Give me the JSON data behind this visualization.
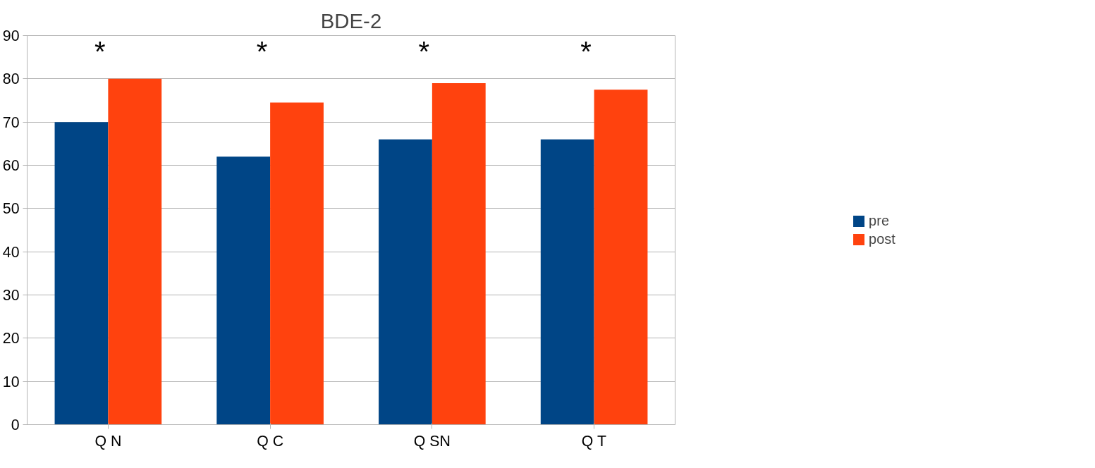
{
  "chart_data": {
    "type": "bar",
    "title": "BDE-2",
    "categories": [
      "Q N",
      "Q C",
      "Q SN",
      "Q T"
    ],
    "series": [
      {
        "name": "pre",
        "color": "#004586",
        "values": [
          70,
          62,
          66,
          66
        ]
      },
      {
        "name": "post",
        "color": "#ff420e",
        "values": [
          80,
          74.5,
          79,
          77.5
        ]
      }
    ],
    "ylim": [
      0,
      90
    ],
    "yticks": [
      0,
      10,
      20,
      30,
      40,
      50,
      60,
      70,
      80,
      90
    ],
    "grid": "y",
    "legend": "right",
    "annotations": [
      "*",
      "*",
      "*",
      "*"
    ]
  }
}
